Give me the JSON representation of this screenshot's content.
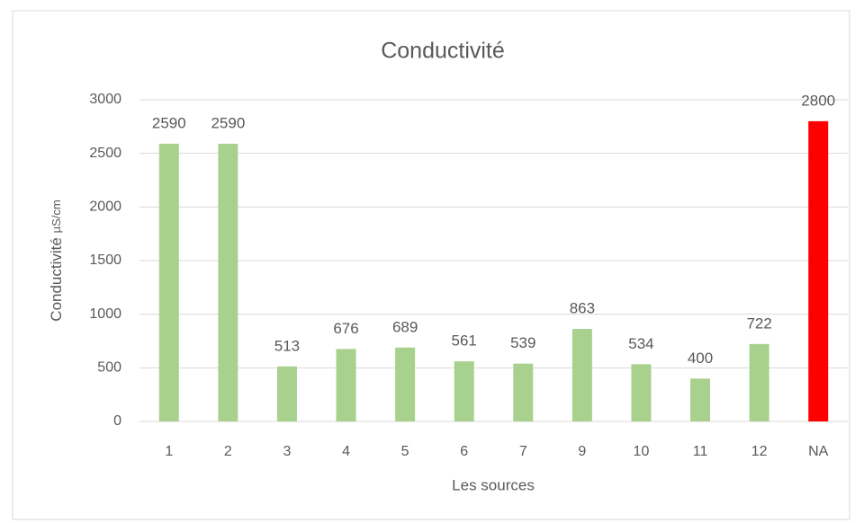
{
  "chart_data": {
    "type": "bar",
    "title": "Conductivité",
    "x_label": "Les sources",
    "y_label": "Conductivité",
    "y_unit": "µS/cm",
    "categories": [
      "1",
      "2",
      "3",
      "4",
      "5",
      "6",
      "7",
      "9",
      "10",
      "11",
      "12",
      "NA"
    ],
    "values": [
      2590,
      2590,
      513,
      676,
      689,
      561,
      539,
      863,
      534,
      400,
      722,
      2800
    ],
    "colors": [
      "#a9d18e",
      "#a9d18e",
      "#a9d18e",
      "#a9d18e",
      "#a9d18e",
      "#a9d18e",
      "#a9d18e",
      "#a9d18e",
      "#a9d18e",
      "#a9d18e",
      "#a9d18e",
      "#ff0000"
    ],
    "ylim": [
      0,
      3000
    ],
    "yticks": [
      0,
      500,
      1000,
      1500,
      2000,
      2500,
      3000
    ],
    "grid": true
  }
}
